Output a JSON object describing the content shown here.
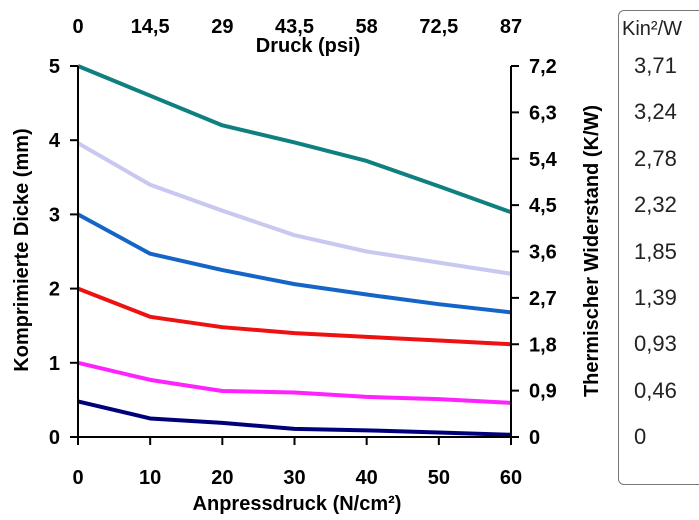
{
  "chart_data": {
    "type": "line",
    "x": [
      0,
      10,
      20,
      30,
      40,
      50,
      60
    ],
    "xlim": [
      0,
      60
    ],
    "ylim": [
      0,
      5
    ],
    "xlabel": "Anpressdruck (N/cm²)",
    "ylabel": "Komprimierte Dicke (mm)",
    "x_ticks": [
      "0",
      "10",
      "20",
      "30",
      "40",
      "50",
      "60"
    ],
    "y_ticks": [
      "0",
      "1",
      "2",
      "3",
      "4",
      "5"
    ],
    "top_axis": {
      "label": "Druck (psi)",
      "ticks": [
        "0",
        "14,5",
        "29",
        "43,5",
        "58",
        "72,5",
        "87"
      ]
    },
    "right_axis": {
      "label": "Thermischer Widerstand (K/W)",
      "ticks": [
        "0",
        "0,9",
        "1,8",
        "2,7",
        "3,6",
        "4,5",
        "5,4",
        "6,3",
        "7,2"
      ],
      "ylim": [
        0,
        7.2
      ]
    },
    "side_scale": {
      "header": "Kin²/W",
      "values": [
        "3,71",
        "3,24",
        "2,78",
        "2,32",
        "1,85",
        "1,39",
        "0,93",
        "0,46",
        "0"
      ]
    },
    "series": [
      {
        "color": "#0f8080",
        "values": [
          5.0,
          4.6,
          4.2,
          3.97,
          3.72,
          3.38,
          3.03
        ]
      },
      {
        "color": "#c8c8f0",
        "values": [
          3.96,
          3.4,
          3.05,
          2.72,
          2.5,
          2.35,
          2.2
        ]
      },
      {
        "color": "#1565c8",
        "values": [
          3.0,
          2.47,
          2.25,
          2.06,
          1.92,
          1.79,
          1.68
        ]
      },
      {
        "color": "#ee1111",
        "values": [
          2.0,
          1.62,
          1.48,
          1.4,
          1.35,
          1.3,
          1.25
        ]
      },
      {
        "color": "#ff22ff",
        "values": [
          1.0,
          0.77,
          0.62,
          0.6,
          0.54,
          0.51,
          0.46
        ]
      },
      {
        "color": "#00007a",
        "values": [
          0.48,
          0.25,
          0.19,
          0.11,
          0.09,
          0.06,
          0.03
        ]
      }
    ]
  }
}
